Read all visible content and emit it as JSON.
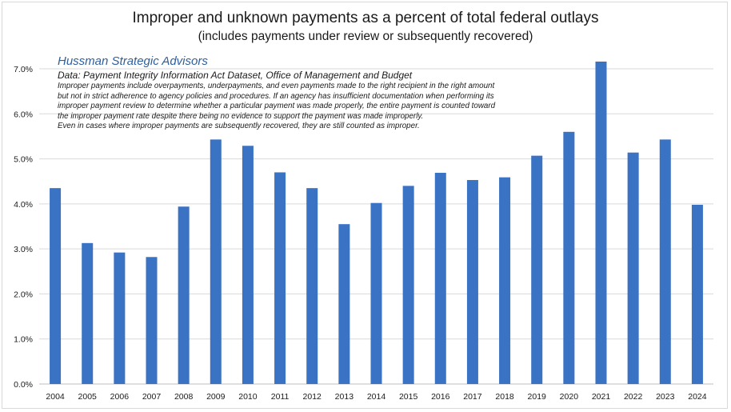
{
  "title": "Improper and unknown payments as a percent of total federal outlays",
  "subtitle": "(includes payments under review or subsequently recovered)",
  "annotation": {
    "brand": "Hussman Strategic Advisors",
    "source": "Data: Payment Integrity Information Act Dataset, Office of Management and Budget",
    "lines": [
      "Improper payments include overpayments, underpayments, and even payments made to the right recipient in the right amount",
      "but not in strict adherence to agency policies and procedures. If an agency has insufficient documentation when performing its",
      "improper payment review to determine whether a particular payment was made properly, the entire payment is counted toward",
      "the improper payment rate despite there being no evidence to support the payment was made improperly.",
      "Even in cases where improper payments are subsequently recovered, they are still counted as improper."
    ]
  },
  "colors": {
    "bar": "#3a72c4",
    "grid": "#d9d9d9",
    "axis": "#bfbfbf"
  },
  "chart_data": {
    "type": "bar",
    "title": "Improper and unknown payments as a percent of total federal outlays",
    "subtitle": "(includes payments under review or subsequently recovered)",
    "xlabel": "",
    "ylabel": "",
    "categories": [
      "2004",
      "2005",
      "2006",
      "2007",
      "2008",
      "2009",
      "2010",
      "2011",
      "2012",
      "2013",
      "2014",
      "2015",
      "2016",
      "2017",
      "2018",
      "2019",
      "2020",
      "2021",
      "2022",
      "2023",
      "2024"
    ],
    "values": [
      4.35,
      3.13,
      2.92,
      2.82,
      3.94,
      5.43,
      5.29,
      4.7,
      4.35,
      3.55,
      4.02,
      4.4,
      4.69,
      4.53,
      4.59,
      5.07,
      5.6,
      7.16,
      5.14,
      5.43,
      3.98
    ],
    "ylim": [
      0,
      7.0
    ],
    "yticks": [
      "0.0%",
      "1.0%",
      "2.0%",
      "3.0%",
      "4.0%",
      "5.0%",
      "6.0%",
      "7.0%"
    ],
    "grid": true,
    "legend": "none"
  }
}
